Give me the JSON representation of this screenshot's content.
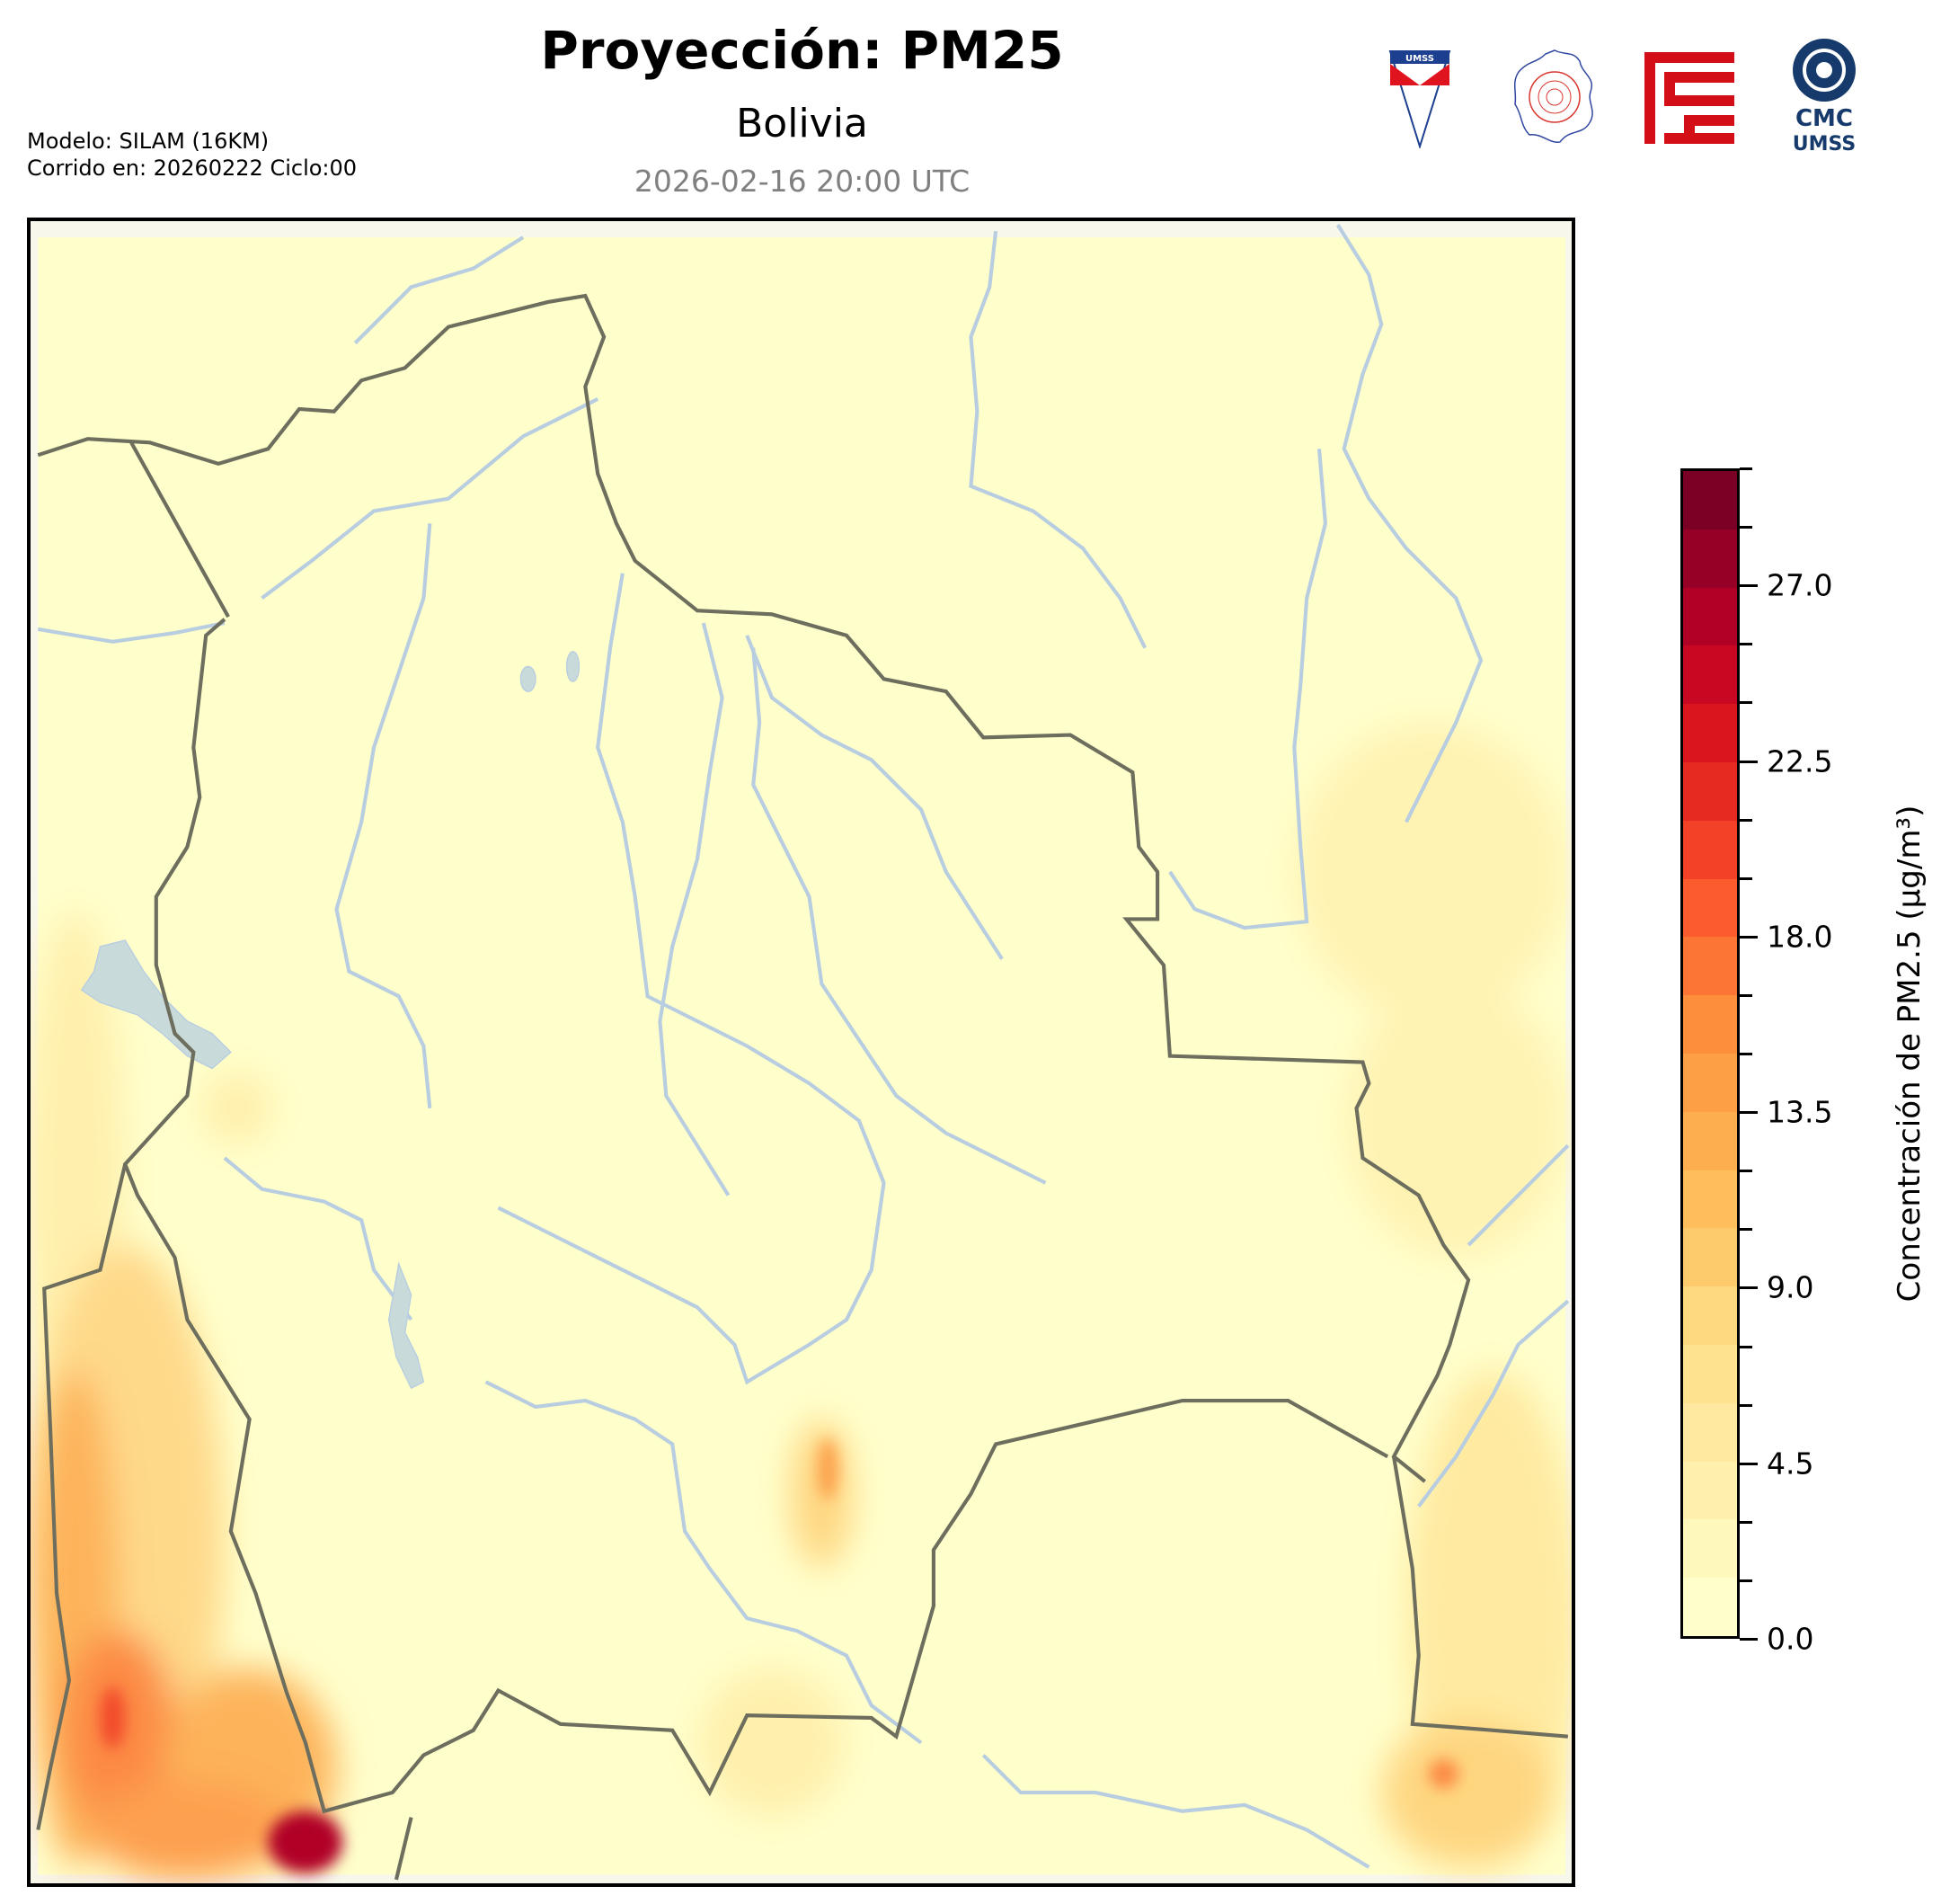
{
  "header": {
    "title": "Proyección: PM25",
    "subtitle": "Bolivia",
    "datetime": "2026-02-16 20:00 UTC",
    "model_line": "Modelo: SILAM (16KM)",
    "run_line": "Corrido en: 20260222 Ciclo:00"
  },
  "logos": {
    "umss": "UMSS",
    "cmc_line1": "CMC",
    "cmc_line2": "UMSS"
  },
  "colorbar": {
    "label": "Concentración de PM2.5 (µg/m³)",
    "min": 0,
    "max": 30,
    "step": 1.5,
    "tick_labels": [
      "0.0",
      "4.5",
      "9.0",
      "13.5",
      "18.0",
      "22.5",
      "27.0"
    ],
    "tick_values": [
      0,
      4.5,
      9,
      13.5,
      18,
      22.5,
      27
    ],
    "colors": [
      "#ffffcc",
      "#fff8bd",
      "#fff0ae",
      "#ffe89f",
      "#fee290",
      "#fed97f",
      "#fecb6c",
      "#febe5b",
      "#fdaf4f",
      "#fda045",
      "#fd8e3c",
      "#fc7535",
      "#fc5b2e",
      "#f34127",
      "#e72a21",
      "#da151e",
      "#c80822",
      "#b10026",
      "#960026",
      "#7a0026",
      "#5e0024"
    ]
  },
  "map": {
    "background_color": "#ffffcc",
    "border_color": "#6e6e5e",
    "river_color": "#b8cde0"
  }
}
